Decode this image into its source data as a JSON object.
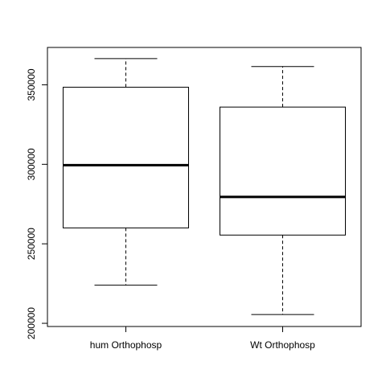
{
  "chart_data": {
    "type": "boxplot",
    "categories": [
      "hum Orthophosp",
      "Wt Orthophosp"
    ],
    "boxes": [
      {
        "category": "hum Orthophosp",
        "whisker_low": 224000,
        "q1": 260000,
        "median": 299500,
        "q3": 348500,
        "whisker_high": 366500
      },
      {
        "category": "Wt Orthophosp",
        "whisker_low": 205500,
        "q1": 255500,
        "median": 279500,
        "q3": 336000,
        "whisker_high": 361500
      }
    ],
    "y_ticks": [
      200000,
      250000,
      300000,
      350000
    ],
    "y_tick_labels": [
      "200000",
      "250000",
      "300000",
      "350000"
    ],
    "ylim": [
      198000,
      373500
    ],
    "grid": false,
    "legend": "none"
  }
}
